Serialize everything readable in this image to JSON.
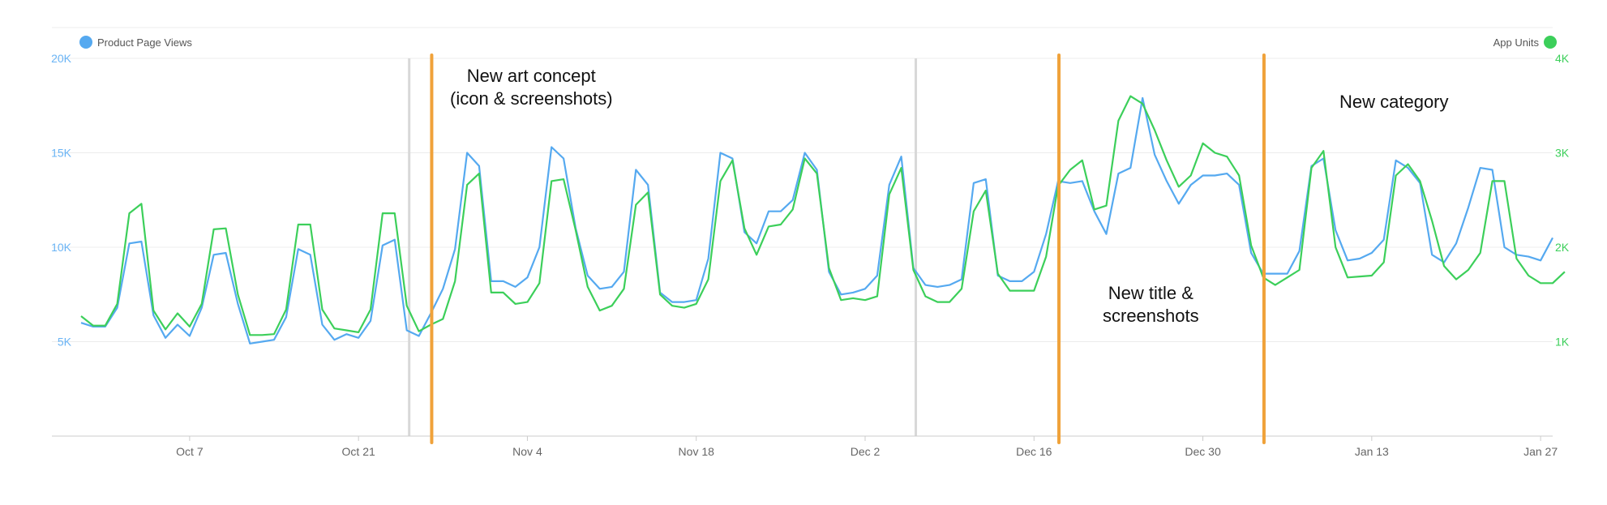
{
  "chart_data": {
    "type": "line",
    "title": "",
    "legend": {
      "placement": "top",
      "left_label": "Product Page Views",
      "right_label": "App Units"
    },
    "colors": {
      "left_series": "#55a9f0",
      "right_series": "#3ccf5a",
      "marker": "#f0a23a",
      "divider": "#d8d8d8",
      "grid": "#ececec"
    },
    "y_left": {
      "ticks": [
        "5K",
        "10K",
        "15K",
        "20K"
      ],
      "min": 0,
      "max": 20000
    },
    "y_right": {
      "ticks": [
        "1K",
        "2K",
        "3K",
        "4K"
      ],
      "min": 0,
      "max": 4000
    },
    "x_labels": [
      "Oct 7",
      "Oct 21",
      "Nov 4",
      "Nov 18",
      "Dec 2",
      "Dec 16",
      "Dec 30",
      "Jan 13",
      "Jan 27"
    ],
    "grid": true,
    "series": [
      {
        "name": "Product Page Views",
        "axis": "left",
        "values": [
          6000,
          5800,
          5800,
          6800,
          10200,
          10300,
          6400,
          5200,
          5900,
          5300,
          6800,
          9600,
          9700,
          7000,
          4900,
          5000,
          5100,
          6300,
          9900,
          9600,
          5900,
          5100,
          5400,
          5200,
          6100,
          10100,
          10400,
          5600,
          5300,
          6500,
          7800,
          9900,
          15000,
          14300,
          8200,
          8200,
          7900,
          8400,
          10000,
          15300,
          14700,
          11000,
          8500,
          7800,
          7900,
          8700,
          14100,
          13300,
          7600,
          7100,
          7100,
          7200,
          9400,
          15000,
          14700,
          10800,
          10200,
          11900,
          11900,
          12500,
          15000,
          14100,
          8700,
          7500,
          7600,
          7800,
          8500,
          13300,
          14800,
          8900,
          8000,
          7900,
          8000,
          8300,
          13400,
          13600,
          8500,
          8200,
          8200,
          8700,
          10700,
          13500,
          13400,
          13500,
          11900,
          10700,
          13900,
          14200,
          17900,
          14900,
          13500,
          12300,
          13300,
          13800,
          13800,
          13900,
          13300,
          9700,
          8600,
          8600,
          8600,
          9800,
          14300,
          14700,
          10900,
          9300,
          9400,
          9700,
          10400,
          14600,
          14200,
          13400,
          9600,
          9200,
          10200,
          12100,
          14200,
          14100,
          10000,
          9600,
          9500,
          9300,
          10500
        ]
      },
      {
        "name": "App Units",
        "axis": "right",
        "values": [
          1270,
          1170,
          1170,
          1400,
          2360,
          2460,
          1330,
          1130,
          1300,
          1160,
          1400,
          2190,
          2200,
          1500,
          1070,
          1070,
          1080,
          1340,
          2240,
          2240,
          1340,
          1140,
          1120,
          1100,
          1340,
          2360,
          2360,
          1380,
          1110,
          1180,
          1240,
          1640,
          2660,
          2780,
          1520,
          1520,
          1400,
          1420,
          1620,
          2700,
          2720,
          2180,
          1580,
          1330,
          1380,
          1560,
          2450,
          2580,
          1500,
          1380,
          1360,
          1400,
          1660,
          2700,
          2920,
          2200,
          1920,
          2220,
          2240,
          2400,
          2940,
          2780,
          1780,
          1440,
          1460,
          1440,
          1480,
          2560,
          2840,
          1760,
          1480,
          1420,
          1420,
          1560,
          2380,
          2600,
          1720,
          1540,
          1540,
          1540,
          1900,
          2650,
          2820,
          2920,
          2400,
          2440,
          3340,
          3600,
          3520,
          3240,
          2920,
          2640,
          2760,
          3100,
          3000,
          2960,
          2760,
          2020,
          1680,
          1600,
          1680,
          1760,
          2840,
          3020,
          2000,
          1680,
          1690,
          1700,
          1840,
          2760,
          2880,
          2700,
          2280,
          1800,
          1660,
          1760,
          1940,
          2700,
          2700,
          1880,
          1700,
          1620,
          1620,
          1740
        ]
      }
    ],
    "annotations": [
      {
        "lines": [
          "New art concept",
          "(icon & screenshots)"
        ],
        "date_index": 29
      },
      {
        "lines": [
          "New title &",
          "screenshots"
        ],
        "date_index": 81
      },
      {
        "lines": [
          "New category"
        ],
        "date_index": 98
      }
    ],
    "event_markers": [
      29,
      81,
      98
    ],
    "gray_dividers": [
      27,
      69
    ]
  }
}
